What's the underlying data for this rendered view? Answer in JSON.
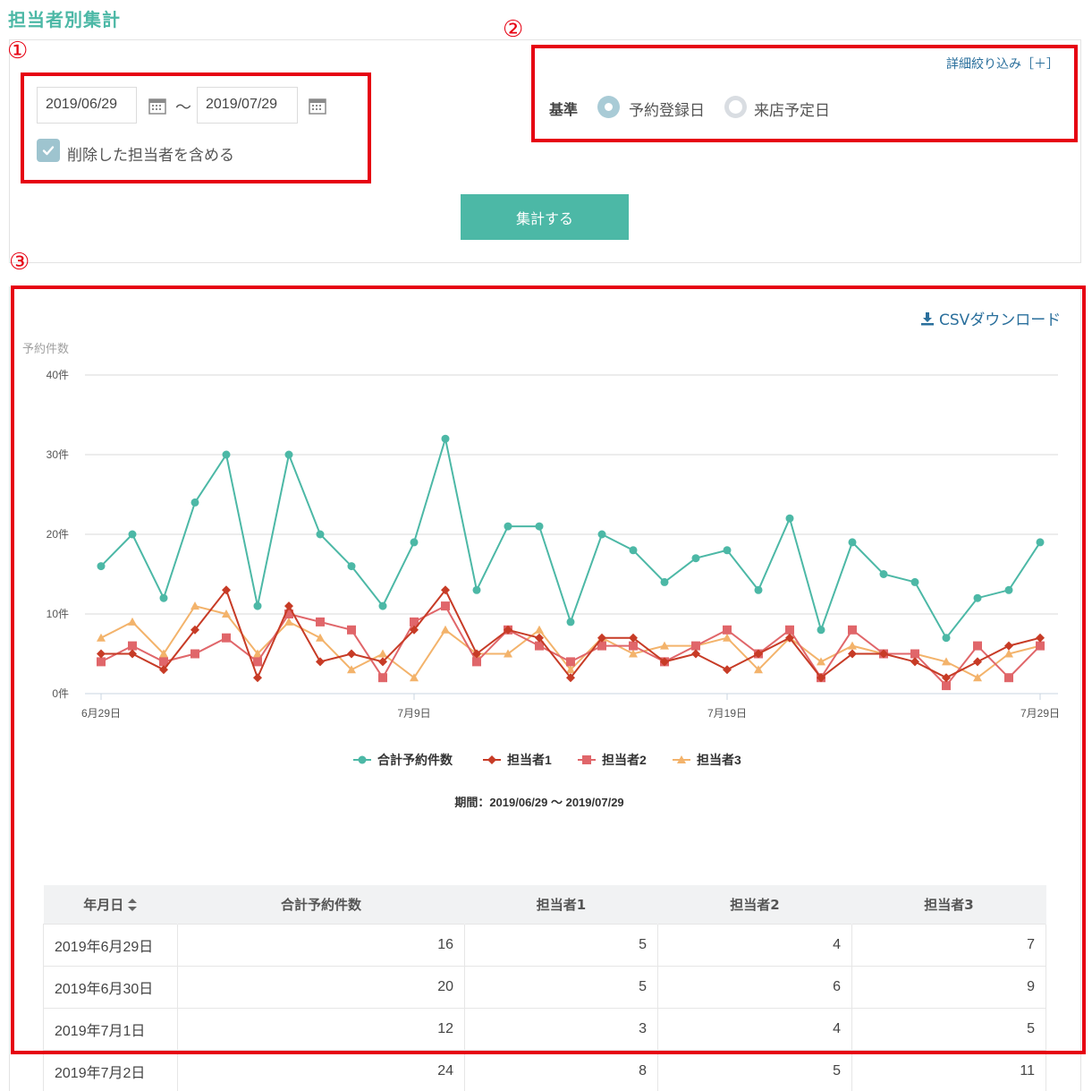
{
  "page": {
    "title": "担当者別集計"
  },
  "annotations": [
    "①",
    "②",
    "③"
  ],
  "filters": {
    "date_from": "2019/06/29",
    "date_to": "2019/07/29",
    "tilde": "〜",
    "include_deleted_label": "削除した担当者を含める",
    "include_deleted_checked": true,
    "detail_link": "詳細絞り込み［＋］",
    "basis_label": "基準",
    "basis_options": [
      {
        "label": "予約登録日",
        "selected": true
      },
      {
        "label": "来店予定日",
        "selected": false
      }
    ],
    "submit_label": "集計する"
  },
  "results": {
    "csv_label": "CSVダウンロード",
    "period_label": "期間：2019/06/29 〜 2019/07/29"
  },
  "colors": {
    "accent": "#4cb8a6",
    "annotation": "#e60012",
    "series": [
      "#4cb8a6",
      "#c73b26",
      "#e0666a",
      "#f3b36b"
    ]
  },
  "chart_data": {
    "type": "line",
    "ylabel": "予約件数",
    "ylim": [
      0,
      40
    ],
    "yticks": [
      "0件",
      "10件",
      "20件",
      "30件",
      "40件"
    ],
    "xticks": [
      "6月29日",
      "7月9日",
      "7月19日",
      "7月29日"
    ],
    "grid": true,
    "legend_position": "bottom",
    "categories": [
      "6/29",
      "6/30",
      "7/1",
      "7/2",
      "7/3",
      "7/4",
      "7/5",
      "7/6",
      "7/7",
      "7/8",
      "7/9",
      "7/10",
      "7/11",
      "7/12",
      "7/13",
      "7/14",
      "7/15",
      "7/16",
      "7/17",
      "7/18",
      "7/19",
      "7/20",
      "7/21",
      "7/22",
      "7/23",
      "7/24",
      "7/25",
      "7/26",
      "7/27",
      "7/28",
      "7/29"
    ],
    "series": [
      {
        "name": "合計予約件数",
        "marker": "circle",
        "values": [
          16,
          20,
          12,
          24,
          30,
          11,
          30,
          20,
          16,
          11,
          19,
          32,
          13,
          21,
          21,
          9,
          20,
          18,
          14,
          17,
          18,
          13,
          22,
          8,
          19,
          15,
          14,
          7,
          12,
          13,
          19
        ]
      },
      {
        "name": "担当者1",
        "marker": "diamond",
        "values": [
          5,
          5,
          3,
          8,
          13,
          2,
          11,
          4,
          5,
          4,
          8,
          13,
          5,
          8,
          7,
          2,
          7,
          7,
          4,
          5,
          3,
          5,
          7,
          2,
          5,
          5,
          4,
          2,
          4,
          6,
          7
        ]
      },
      {
        "name": "担当者2",
        "marker": "square",
        "values": [
          4,
          6,
          4,
          5,
          7,
          4,
          10,
          9,
          8,
          2,
          9,
          11,
          4,
          8,
          6,
          4,
          6,
          6,
          4,
          6,
          8,
          5,
          8,
          2,
          8,
          5,
          5,
          1,
          6,
          2,
          6
        ]
      },
      {
        "name": "担当者3",
        "marker": "triangle",
        "values": [
          7,
          9,
          5,
          11,
          10,
          5,
          9,
          7,
          3,
          5,
          2,
          8,
          5,
          5,
          8,
          3,
          7,
          5,
          6,
          6,
          7,
          3,
          7,
          4,
          6,
          5,
          5,
          4,
          2,
          5,
          6
        ]
      }
    ]
  },
  "table": {
    "headers": [
      "年月日",
      "合計予約件数",
      "担当者1",
      "担当者2",
      "担当者3"
    ],
    "rows": [
      [
        "2019年6月29日",
        "16",
        "5",
        "4",
        "7"
      ],
      [
        "2019年6月30日",
        "20",
        "5",
        "6",
        "9"
      ],
      [
        "2019年7月1日",
        "12",
        "3",
        "4",
        "5"
      ],
      [
        "2019年7月2日",
        "24",
        "8",
        "5",
        "11"
      ]
    ]
  }
}
